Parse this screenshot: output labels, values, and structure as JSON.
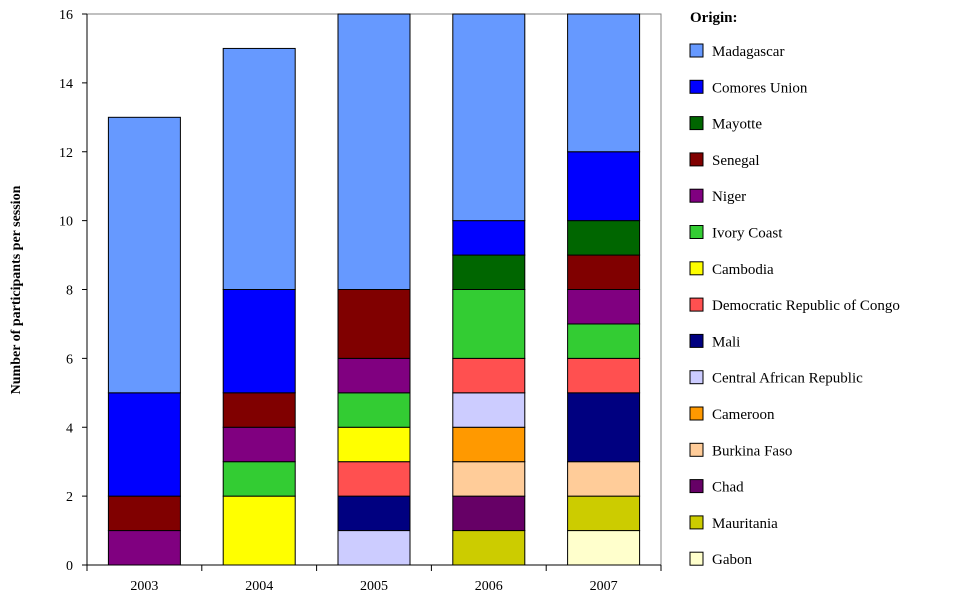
{
  "chart_data": {
    "type": "bar",
    "stacked": true,
    "categories": [
      "2003",
      "2004",
      "2005",
      "2006",
      "2007"
    ],
    "ylabel": "Number of participants per session",
    "xlabel": "",
    "ylim": [
      0,
      16
    ],
    "yticks": [
      0,
      2,
      4,
      6,
      8,
      10,
      12,
      14,
      16
    ],
    "legend_title": "Origin:",
    "legend_position": "right",
    "series": [
      {
        "name": "Gabon",
        "color": "#FFFFCC",
        "values": [
          0,
          0,
          0,
          0,
          1
        ]
      },
      {
        "name": "Mauritania",
        "color": "#CCCC00",
        "values": [
          0,
          0,
          0,
          1,
          1
        ]
      },
      {
        "name": "Chad",
        "color": "#660066",
        "values": [
          0,
          0,
          0,
          1,
          0
        ]
      },
      {
        "name": "Burkina Faso",
        "color": "#FFCC99",
        "values": [
          0,
          0,
          0,
          1,
          1
        ]
      },
      {
        "name": "Cameroon",
        "color": "#FF9900",
        "values": [
          0,
          0,
          0,
          1,
          0
        ]
      },
      {
        "name": "Central African Republic",
        "color": "#CCCCFF",
        "values": [
          0,
          0,
          1,
          1,
          0
        ]
      },
      {
        "name": "Mali",
        "color": "#000080",
        "values": [
          0,
          0,
          1,
          0,
          2
        ]
      },
      {
        "name": "Democratic Republic of Congo",
        "color": "#FF5050",
        "values": [
          0,
          0,
          1,
          1,
          1
        ]
      },
      {
        "name": "Cambodia",
        "color": "#FFFF00",
        "values": [
          0,
          2,
          1,
          0,
          0
        ]
      },
      {
        "name": "Ivory Coast",
        "color": "#33CC33",
        "values": [
          0,
          1,
          1,
          2,
          1
        ]
      },
      {
        "name": "Niger",
        "color": "#800080",
        "values": [
          1,
          1,
          1,
          0,
          1
        ]
      },
      {
        "name": "Senegal",
        "color": "#800000",
        "values": [
          1,
          1,
          2,
          0,
          1
        ]
      },
      {
        "name": "Mayotte",
        "color": "#006600",
        "values": [
          0,
          0,
          0,
          1,
          1
        ]
      },
      {
        "name": "Comores Union",
        "color": "#0000FF",
        "values": [
          3,
          3,
          0,
          1,
          2
        ]
      },
      {
        "name": "Madagascar",
        "color": "#6699FF",
        "values": [
          8,
          7,
          8,
          6,
          4
        ]
      }
    ]
  }
}
